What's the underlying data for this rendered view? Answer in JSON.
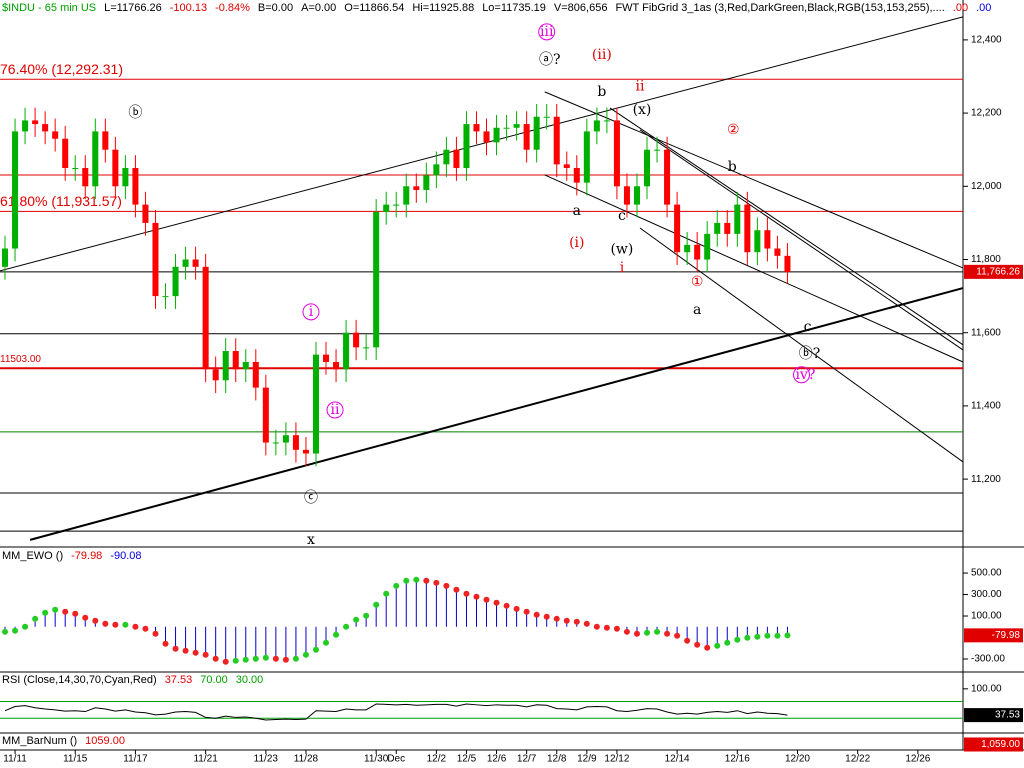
{
  "header": [
    {
      "text": "$INDU - 65 min  US",
      "color": "#00a000"
    },
    {
      "text": "L=11766.26",
      "color": "#000000"
    },
    {
      "text": "-100.13",
      "color": "#e00000"
    },
    {
      "text": "-0.84%",
      "color": "#e00000"
    },
    {
      "text": "B=0.00",
      "color": "#000000"
    },
    {
      "text": "A=0.00",
      "color": "#000000"
    },
    {
      "text": "O=11866.54",
      "color": "#000000"
    },
    {
      "text": "Hi=11925.88",
      "color": "#000000"
    },
    {
      "text": "Lo=11735.19",
      "color": "#000000"
    },
    {
      "text": "V=806,656",
      "color": "#000000"
    },
    {
      "text": "FWT FibGrid 3_1as (3,Red,DarkGreen,Black,RGB(153,153,255),....",
      "color": "#000000"
    },
    {
      "text": ".00",
      "color": "#e00000"
    },
    {
      "text": ".00",
      "color": "#0000e0"
    }
  ],
  "chart_data": [
    {
      "type": "candlestick",
      "categories": [
        null,
        "11/11",
        null,
        null,
        null,
        null,
        null,
        "11/15",
        null,
        null,
        null,
        null,
        null,
        "11/17",
        null,
        null,
        null,
        null,
        null,
        null,
        "11/21",
        null,
        null,
        null,
        null,
        null,
        "11/23",
        null,
        null,
        null,
        "11/28",
        null,
        null,
        null,
        null,
        null,
        null,
        "11/30",
        null,
        "Dec",
        null,
        null,
        null,
        "12/2",
        null,
        null,
        "12/5",
        null,
        null,
        "12/6",
        null,
        null,
        "12/7",
        null,
        null,
        "12/8",
        null,
        null,
        "12/9",
        null,
        null,
        "12/12",
        null,
        null,
        null,
        null,
        null,
        "12/14",
        null,
        null,
        null,
        null,
        null,
        "12/16",
        null,
        null,
        null,
        null,
        null,
        "12/20",
        null,
        null,
        null,
        null,
        null,
        "12/22",
        null,
        null,
        null,
        null,
        null,
        "12/26",
        null,
        null,
        null,
        null
      ],
      "open": [
        11780,
        11830,
        12150,
        12180,
        12170,
        12150,
        12130,
        12050,
        12050,
        12000,
        12150,
        12100,
        12000,
        12050,
        11950,
        11900,
        11700,
        11700,
        11780,
        11800,
        11780,
        11500,
        11470,
        11550,
        11500,
        11520,
        11450,
        11300,
        11300,
        11320,
        11280,
        11270,
        11540,
        11520,
        11500,
        11600,
        11560,
        11560,
        11930,
        11950,
        11950,
        12000,
        11990,
        12030,
        12060,
        12100,
        12050,
        12170,
        12150,
        12120,
        12160,
        12160,
        12170,
        12100,
        12190,
        12190,
        12060,
        12050,
        12010,
        12150,
        12180,
        12180,
        12000,
        11950,
        12000,
        12100,
        12100,
        11950,
        11820,
        11840,
        11800,
        11870,
        11900,
        11870,
        11950,
        11820,
        11880,
        11830,
        11810,
        null,
        null,
        null,
        null,
        null,
        null,
        null,
        null,
        null,
        null,
        null,
        null,
        null,
        null,
        null,
        null,
        null
      ],
      "high": [
        11865,
        12185,
        12215,
        12215,
        12205,
        12185,
        12165,
        12085,
        12085,
        12185,
        12185,
        12135,
        12085,
        12085,
        11985,
        11935,
        11735,
        11815,
        11835,
        11835,
        11815,
        11535,
        11585,
        11585,
        11555,
        11555,
        11485,
        11335,
        11355,
        11355,
        11315,
        11575,
        11575,
        11555,
        11635,
        11635,
        11595,
        11965,
        11985,
        11985,
        12035,
        12035,
        12065,
        12095,
        12135,
        12135,
        12205,
        12205,
        12185,
        12195,
        12195,
        12205,
        12205,
        12225,
        12225,
        12225,
        12095,
        12085,
        12185,
        12215,
        12215,
        12215,
        12035,
        12035,
        12135,
        12135,
        12135,
        11985,
        11875,
        11875,
        11905,
        11935,
        11935,
        11985,
        11985,
        11915,
        11915,
        11865,
        11845,
        null,
        null,
        null,
        null,
        null,
        null,
        null,
        null,
        null,
        null,
        null,
        null,
        null,
        null,
        null,
        null,
        null
      ],
      "low": [
        11745,
        11795,
        12115,
        12135,
        12115,
        12095,
        12015,
        12015,
        11965,
        11965,
        12065,
        11965,
        11965,
        11915,
        11865,
        11665,
        11665,
        11665,
        11745,
        11745,
        11465,
        11435,
        11435,
        11465,
        11465,
        11415,
        11265,
        11265,
        11265,
        11245,
        11235,
        11235,
        11485,
        11465,
        11465,
        11525,
        11525,
        11525,
        11895,
        11915,
        11915,
        11955,
        11955,
        11995,
        12025,
        12015,
        12015,
        12115,
        12085,
        12085,
        12125,
        12125,
        12065,
        12065,
        12155,
        12025,
        12015,
        11975,
        11975,
        12115,
        12145,
        11965,
        11915,
        11915,
        11965,
        12065,
        11915,
        11785,
        11785,
        11765,
        11765,
        11835,
        11835,
        11835,
        11785,
        11785,
        11795,
        11775,
        11735,
        null,
        null,
        null,
        null,
        null,
        null,
        null,
        null,
        null,
        null,
        null,
        null,
        null,
        null,
        null,
        null,
        null
      ],
      "close": [
        11830,
        12150,
        12180,
        12170,
        12150,
        12130,
        12050,
        12050,
        12000,
        12150,
        12100,
        12000,
        12050,
        11950,
        11900,
        11700,
        11700,
        11780,
        11800,
        11780,
        11500,
        11470,
        11550,
        11500,
        11520,
        11450,
        11300,
        11300,
        11320,
        11280,
        11270,
        11540,
        11520,
        11500,
        11600,
        11560,
        11560,
        11930,
        11950,
        11950,
        12000,
        11990,
        12030,
        12060,
        12100,
        12050,
        12170,
        12150,
        12120,
        12160,
        12160,
        12170,
        12100,
        12190,
        12190,
        12060,
        12050,
        12010,
        12150,
        12180,
        12180,
        12000,
        11950,
        12000,
        12100,
        12100,
        11950,
        11820,
        11840,
        11800,
        11870,
        11900,
        11870,
        11950,
        11820,
        11880,
        11830,
        11810,
        11766,
        null,
        null,
        null,
        null,
        null,
        null,
        null,
        null,
        null,
        null,
        null,
        null,
        null,
        null,
        null,
        null,
        null
      ],
      "up_color": "#00b000",
      "down_color": "#ff0000",
      "ylim": [
        11020,
        12509
      ],
      "yticks": [
        {
          "value": 12400,
          "label": "12,400"
        },
        {
          "value": 12200,
          "label": "12,200"
        },
        {
          "value": 12000,
          "label": "12,000"
        },
        {
          "value": 11800,
          "label": "11,800"
        },
        {
          "value": 11600,
          "label": "11,600"
        },
        {
          "value": 11400,
          "label": "11,400"
        },
        {
          "value": 11200,
          "label": "11,200"
        }
      ],
      "last": {
        "value": 11766.26,
        "label": "11,766.26",
        "color": "#e00000"
      },
      "levels": [
        {
          "value": 12292.31,
          "color": "#e00000",
          "label": "76.40% (12,292.31)"
        },
        {
          "value": 12031,
          "color": "#e00000"
        },
        {
          "value": 11931.57,
          "color": "#e00000",
          "label": "61.80% (11,931.57)"
        },
        {
          "value": 11597,
          "color": "#000000"
        },
        {
          "value": 11503,
          "color": "#e00000",
          "label": "11503.00",
          "width": 2
        },
        {
          "value": 11329,
          "color": "#008000"
        },
        {
          "value": 11162,
          "color": "#000000"
        },
        {
          "value": 11058,
          "color": "#000000"
        }
      ],
      "trendlines": [
        {
          "x": [
            -0.5,
            95.5
          ],
          "y": [
            11769,
            12463
          ],
          "width": 1
        },
        {
          "x": [
            2.5,
            95.5
          ],
          "y": [
            11034,
            11722
          ],
          "width": 2
        },
        {
          "x": [
            53.8,
            95.5
          ],
          "y": [
            12258,
            11777
          ],
          "width": 1
        },
        {
          "x": [
            53.8,
            95.5
          ],
          "y": [
            12031,
            11520
          ],
          "width": 1
        },
        {
          "x": [
            63.3,
            95.5
          ],
          "y": [
            11886,
            11247
          ],
          "width": 1
        },
        {
          "x": [
            63.3,
            95.5
          ],
          "y": [
            12154,
            11553
          ],
          "width": 1
        },
        {
          "x": [
            60.3,
            95.5
          ],
          "y": [
            12214,
            11567
          ],
          "width": 1
        }
      ],
      "annotations": [
        {
          "text": "ⅲ",
          "x": 54,
          "y": 12422,
          "color": "#e000e0",
          "circled": true
        },
        {
          "text": "ⓐ?",
          "x": 54.3,
          "y": 12345,
          "color": "#000000",
          "circled": false
        },
        {
          "text": "(ii)",
          "x": 59.5,
          "y": 12359,
          "color": "#e00000",
          "circled": false
        },
        {
          "text": "ii",
          "x": 63.3,
          "y": 12272,
          "color": "#e00000",
          "circled": false
        },
        {
          "text": "b",
          "x": 59.5,
          "y": 12258,
          "color": "#000000",
          "circled": false
        },
        {
          "text": "(x)",
          "x": 63.5,
          "y": 12209,
          "color": "#000000",
          "circled": false
        },
        {
          "text": "②",
          "x": 72.6,
          "y": 12154,
          "color": "#e00000",
          "circled": false
        },
        {
          "text": "b",
          "x": 72.5,
          "y": 12053,
          "color": "#000000",
          "circled": false
        },
        {
          "text": "a",
          "x": 57,
          "y": 11933,
          "color": "#000000",
          "circled": false
        },
        {
          "text": "c",
          "x": 61.5,
          "y": 11919,
          "color": "#000000",
          "circled": false
        },
        {
          "text": "(i)",
          "x": 57,
          "y": 11845,
          "color": "#e00000",
          "circled": false
        },
        {
          "text": "(w)",
          "x": 61.5,
          "y": 11828,
          "color": "#000000",
          "circled": false
        },
        {
          "text": "i",
          "x": 61.5,
          "y": 11777,
          "color": "#e00000",
          "circled": false
        },
        {
          "text": "①",
          "x": 69,
          "y": 11739,
          "color": "#e00000",
          "circled": false
        },
        {
          "text": "a",
          "x": 69,
          "y": 11662,
          "color": "#000000",
          "circled": false
        },
        {
          "text": "c",
          "x": 80,
          "y": 11616,
          "color": "#000000",
          "circled": false
        },
        {
          "text": "ⓑ?",
          "x": 80.2,
          "y": 11542,
          "color": "#000000",
          "circled": false
        },
        {
          "text": "ⅳ?",
          "x": 79.8,
          "y": 11485,
          "color": "#e000e0",
          "circled": true
        },
        {
          "text": "ⓑ",
          "x": 13,
          "y": 12200,
          "color": "#000000",
          "circled": false
        },
        {
          "text": "ⅰ",
          "x": 30.5,
          "y": 11657,
          "color": "#e000e0",
          "circled": true
        },
        {
          "text": "ⅱ",
          "x": 32.9,
          "y": 11389,
          "color": "#e000e0",
          "circled": true
        },
        {
          "text": "ⓒ",
          "x": 30.5,
          "y": 11149,
          "color": "#000000",
          "circled": false
        },
        {
          "text": "x",
          "x": 30.5,
          "y": 11034,
          "color": "#000000",
          "circled": false
        }
      ]
    },
    {
      "type": "oscillator",
      "title": "MM_EWO ()",
      "readouts": [
        {
          "value": -79.98,
          "color": "#e00000"
        },
        {
          "value": -90.08,
          "color": "#0000e0"
        }
      ],
      "values": [
        -47,
        -37,
        0,
        74,
        130,
        158,
        140,
        121,
        84,
        56,
        28,
        19,
        19,
        0,
        -19,
        -65,
        -158,
        -205,
        -223,
        -242,
        -260,
        -298,
        -326,
        -316,
        -307,
        -298,
        -288,
        -298,
        -307,
        -298,
        -260,
        -214,
        -149,
        -74,
        0,
        65,
        102,
        205,
        307,
        381,
        428,
        437,
        428,
        409,
        381,
        344,
        307,
        279,
        251,
        223,
        195,
        167,
        140,
        112,
        93,
        74,
        56,
        47,
        28,
        0,
        -9,
        -19,
        -47,
        -65,
        -56,
        -47,
        -65,
        -84,
        -130,
        -167,
        -195,
        -177,
        -149,
        -121,
        -102,
        -93,
        -84,
        -84,
        -79.98
      ],
      "color": "#0000cc",
      "up_color": "#22cc22",
      "down_color": "#ee2222",
      "ylim": [
        -421,
        733
      ],
      "yticks": [
        {
          "value": 500,
          "label": "500.00"
        },
        {
          "value": 300,
          "label": "300.00"
        },
        {
          "value": 100,
          "label": "100.00"
        },
        {
          "value": -300,
          "label": "-300.00"
        }
      ]
    },
    {
      "type": "line",
      "title": "RSI (Close,14,30,70,Cyan,Red)",
      "readouts": [
        {
          "value": 37.53,
          "color": "#e00000"
        },
        {
          "value": 70,
          "label": "70.00",
          "color": "#00a000"
        },
        {
          "value": 30,
          "label": "30.00",
          "color": "#00a000"
        }
      ],
      "values": [
        48,
        58,
        60,
        55,
        52,
        50,
        47,
        48,
        46,
        55,
        52,
        47,
        50,
        45,
        43,
        38,
        40,
        45,
        46,
        44,
        32,
        30,
        35,
        32,
        33,
        30,
        26,
        27,
        28,
        27,
        28,
        48,
        47,
        46,
        52,
        50,
        50,
        64,
        63,
        62,
        63,
        61,
        62,
        63,
        63,
        59,
        64,
        62,
        60,
        62,
        61,
        61,
        57,
        62,
        61,
        53,
        52,
        50,
        57,
        58,
        57,
        48,
        46,
        49,
        53,
        52,
        45,
        40,
        42,
        40,
        44,
        46,
        44,
        48,
        41,
        45,
        42,
        41,
        37.53
      ],
      "color": "#000000",
      "levels": [
        {
          "value": 70,
          "color": "#00a000"
        },
        {
          "value": 30,
          "color": "#00a000"
        }
      ],
      "ylim": [
        -5,
        140
      ],
      "yticks": [
        {
          "value": 100,
          "label": "100.00"
        }
      ]
    },
    {
      "type": "text",
      "title": "MM_BarNum ()",
      "readouts": [
        {
          "value": 1059,
          "label": "1059.00",
          "color": "#e00000"
        }
      ],
      "tag": {
        "value": 1059,
        "label": "1,059.00",
        "color": "#e00000"
      }
    }
  ]
}
